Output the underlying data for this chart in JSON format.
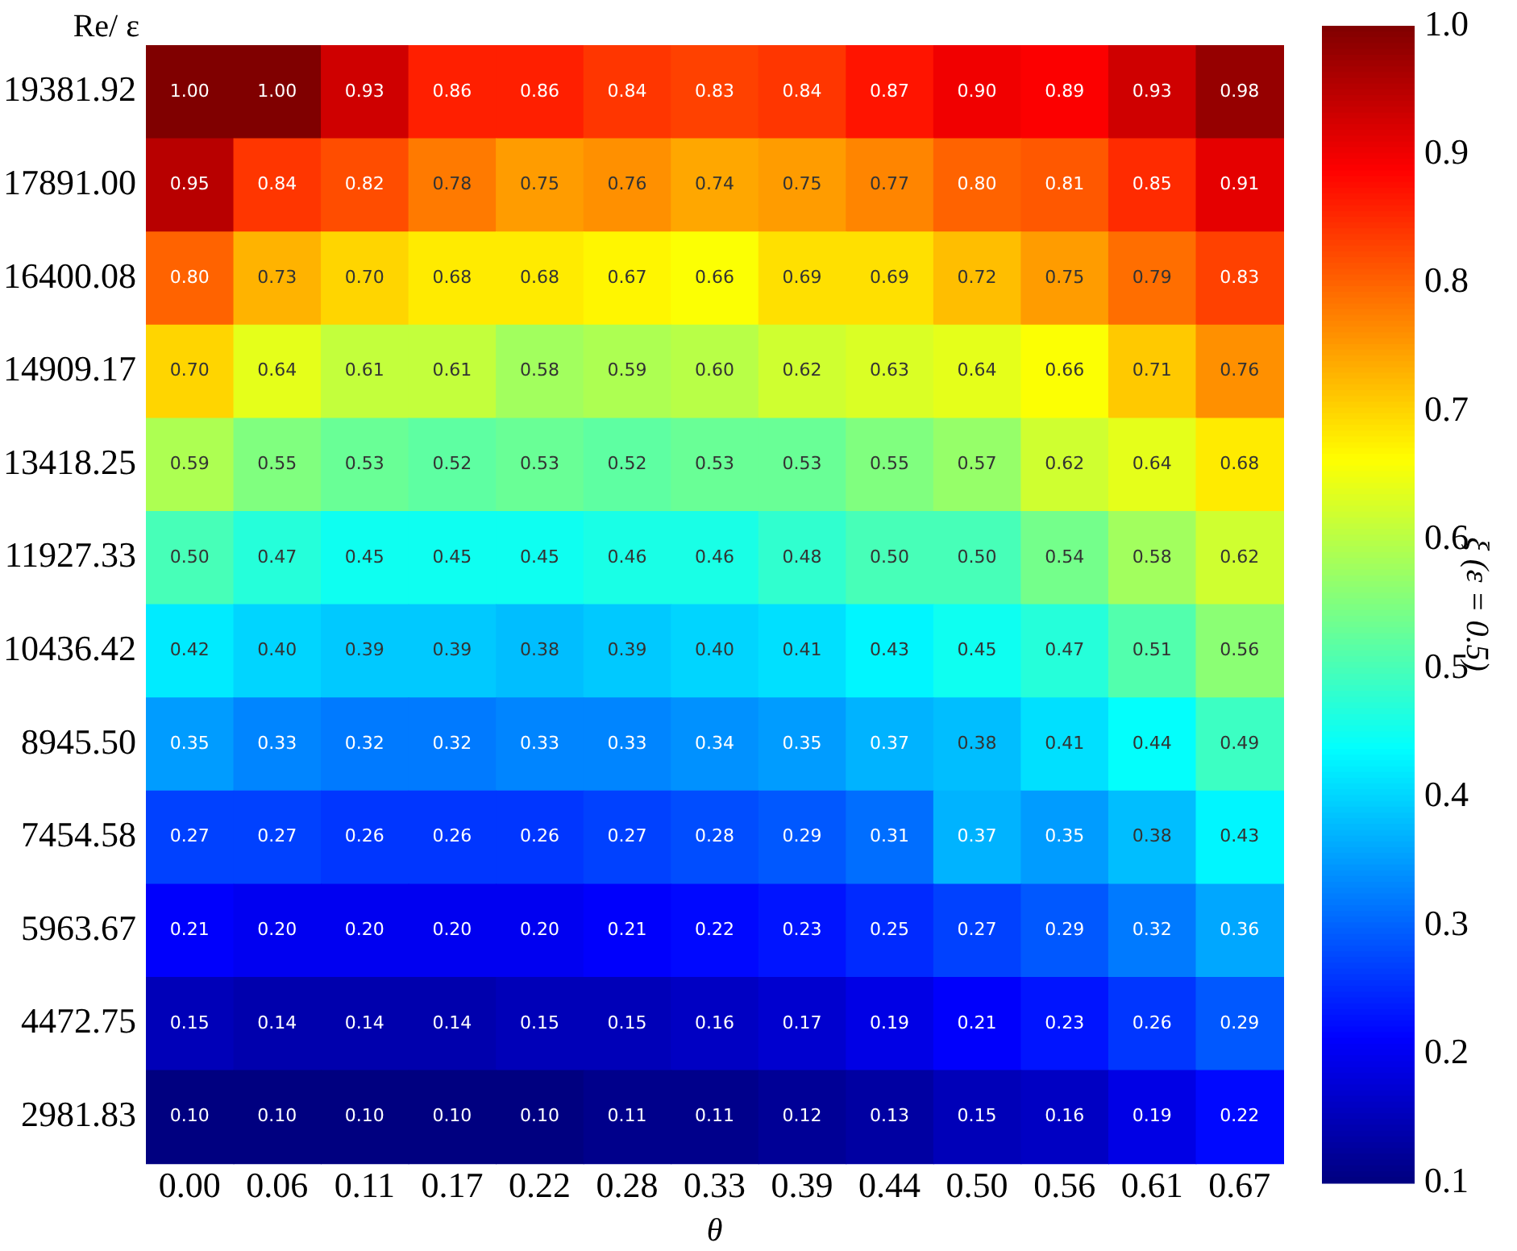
{
  "chart_data": {
    "type": "heatmap",
    "xlabel": "θ",
    "ylabel": "Re/ ε",
    "clabel": "ξ (ε = 0.5)",
    "categories": [
      "0.00",
      "0.06",
      "0.11",
      "0.17",
      "0.22",
      "0.28",
      "0.33",
      "0.39",
      "0.44",
      "0.50",
      "0.56",
      "0.61",
      "0.67"
    ],
    "y_categories": [
      "19381.92",
      "17891.00",
      "16400.08",
      "14909.17",
      "13418.25",
      "11927.33",
      "10436.42",
      "8945.50",
      "7454.58",
      "5963.67",
      "4472.75",
      "2981.83"
    ],
    "cells": [
      [
        1.0,
        1.0,
        0.93,
        0.86,
        0.86,
        0.84,
        0.83,
        0.84,
        0.87,
        0.9,
        0.89,
        0.93,
        0.98
      ],
      [
        0.95,
        0.84,
        0.82,
        0.78,
        0.75,
        0.76,
        0.74,
        0.75,
        0.77,
        0.8,
        0.81,
        0.85,
        0.91
      ],
      [
        0.8,
        0.73,
        0.7,
        0.68,
        0.68,
        0.67,
        0.66,
        0.69,
        0.69,
        0.72,
        0.75,
        0.79,
        0.83
      ],
      [
        0.7,
        0.64,
        0.61,
        0.61,
        0.58,
        0.59,
        0.6,
        0.62,
        0.63,
        0.64,
        0.66,
        0.71,
        0.76
      ],
      [
        0.59,
        0.55,
        0.53,
        0.52,
        0.53,
        0.52,
        0.53,
        0.53,
        0.55,
        0.57,
        0.62,
        0.64,
        0.68
      ],
      [
        0.5,
        0.47,
        0.45,
        0.45,
        0.45,
        0.46,
        0.46,
        0.48,
        0.5,
        0.5,
        0.54,
        0.58,
        0.62
      ],
      [
        0.42,
        0.4,
        0.39,
        0.39,
        0.38,
        0.39,
        0.4,
        0.41,
        0.43,
        0.45,
        0.47,
        0.51,
        0.56
      ],
      [
        0.35,
        0.33,
        0.32,
        0.32,
        0.33,
        0.33,
        0.34,
        0.35,
        0.37,
        0.38,
        0.41,
        0.44,
        0.49
      ],
      [
        0.27,
        0.27,
        0.26,
        0.26,
        0.26,
        0.27,
        0.28,
        0.29,
        0.31,
        0.37,
        0.35,
        0.38,
        0.43
      ],
      [
        0.21,
        0.2,
        0.2,
        0.2,
        0.2,
        0.21,
        0.22,
        0.23,
        0.25,
        0.27,
        0.29,
        0.32,
        0.36
      ],
      [
        0.15,
        0.14,
        0.14,
        0.14,
        0.15,
        0.15,
        0.16,
        0.17,
        0.19,
        0.21,
        0.23,
        0.26,
        0.29
      ],
      [
        0.1,
        0.1,
        0.1,
        0.1,
        0.1,
        0.11,
        0.11,
        0.12,
        0.13,
        0.15,
        0.16,
        0.19,
        0.22
      ]
    ],
    "cell_labels": [
      [
        "1.00",
        "1.00",
        "0.93",
        "0.86",
        "0.86",
        "0.84",
        "0.83",
        "0.84",
        "0.87",
        "0.90",
        "0.89",
        "0.93",
        "0.98"
      ],
      [
        "0.95",
        "0.84",
        "0.82",
        "0.78",
        "0.75",
        "0.76",
        "0.74",
        "0.75",
        "0.77",
        "0.80",
        "0.81",
        "0.85",
        "0.91"
      ],
      [
        "0.80",
        "0.73",
        "0.70",
        "0.68",
        "0.68",
        "0.67",
        "0.66",
        "0.69",
        "0.69",
        "0.72",
        "0.75",
        "0.79",
        "0.83"
      ],
      [
        "0.70",
        "0.64",
        "0.61",
        "0.61",
        "0.58",
        "0.59",
        "0.60",
        "0.62",
        "0.63",
        "0.64",
        "0.66",
        "0.71",
        "0.76"
      ],
      [
        "0.59",
        "0.55",
        "0.53",
        "0.52",
        "0.53",
        "0.52",
        "0.53",
        "0.53",
        "0.55",
        "0.57",
        "0.62",
        "0.64",
        "0.68"
      ],
      [
        "0.50",
        "0.47",
        "0.45",
        "0.45",
        "0.45",
        "0.46",
        "0.46",
        "0.48",
        "0.50",
        "0.50",
        "0.54",
        "0.58",
        "0.62"
      ],
      [
        "0.42",
        "0.40",
        "0.39",
        "0.39",
        "0.38",
        "0.39",
        "0.40",
        "0.41",
        "0.43",
        "0.45",
        "0.47",
        "0.51",
        "0.56"
      ],
      [
        "0.35",
        "0.33",
        "0.32",
        "0.32",
        "0.33",
        "0.33",
        "0.34",
        "0.35",
        "0.37",
        "0.38",
        "0.41",
        "0.44",
        "0.49"
      ],
      [
        "0.27",
        "0.27",
        "0.26",
        "0.26",
        "0.26",
        "0.27",
        "0.28",
        "0.29",
        "0.31",
        "0.37",
        "0.35",
        "0.38",
        "0.43"
      ],
      [
        "0.21",
        "0.20",
        "0.20",
        "0.20",
        "0.20",
        "0.21",
        "0.22",
        "0.23",
        "0.25",
        "0.27",
        "0.29",
        "0.32",
        "0.36"
      ],
      [
        "0.15",
        "0.14",
        "0.14",
        "0.14",
        "0.15",
        "0.15",
        "0.16",
        "0.17",
        "0.19",
        "0.21",
        "0.23",
        "0.26",
        "0.29"
      ],
      [
        "0.10",
        "0.10",
        "0.10",
        "0.10",
        "0.10",
        "0.11",
        "0.11",
        "0.12",
        "0.13",
        "0.15",
        "0.16",
        "0.19",
        "0.22"
      ]
    ],
    "clim": [
      0.1,
      1.0
    ],
    "cticks": [
      {
        "value": 0.1,
        "label": "0.1"
      },
      {
        "value": 0.2,
        "label": "0.2"
      },
      {
        "value": 0.3,
        "label": "0.3"
      },
      {
        "value": 0.4,
        "label": "0.4"
      },
      {
        "value": 0.5,
        "label": "0.5"
      },
      {
        "value": 0.6,
        "label": "0.6"
      },
      {
        "value": 0.7,
        "label": "0.7"
      },
      {
        "value": 0.8,
        "label": "0.8"
      },
      {
        "value": 0.9,
        "label": "0.9"
      },
      {
        "value": 1.0,
        "label": "1.0"
      }
    ]
  }
}
